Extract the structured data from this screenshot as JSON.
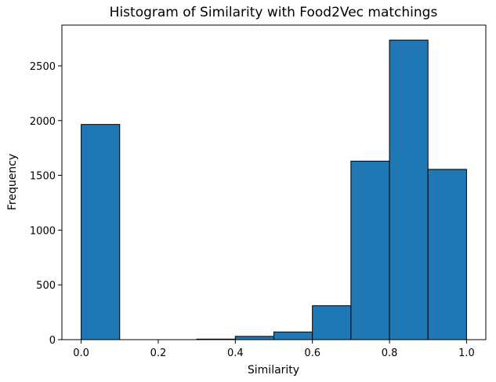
{
  "chart_data": {
    "type": "bar",
    "title": "Histogram of Similarity with Food2Vec matchings",
    "xlabel": "Similarity",
    "ylabel": "Frequency",
    "bins": [
      {
        "x0": 0.0,
        "x1": 0.1,
        "value": 1965
      },
      {
        "x0": 0.1,
        "x1": 0.2,
        "value": 0
      },
      {
        "x0": 0.2,
        "x1": 0.3,
        "value": 0
      },
      {
        "x0": 0.3,
        "x1": 0.4,
        "value": 5
      },
      {
        "x0": 0.4,
        "x1": 0.5,
        "value": 30
      },
      {
        "x0": 0.5,
        "x1": 0.6,
        "value": 70
      },
      {
        "x0": 0.6,
        "x1": 0.7,
        "value": 310
      },
      {
        "x0": 0.7,
        "x1": 0.8,
        "value": 1630
      },
      {
        "x0": 0.8,
        "x1": 0.9,
        "value": 2735
      },
      {
        "x0": 0.9,
        "x1": 1.0,
        "value": 1555
      }
    ],
    "xlim": [
      -0.05,
      1.05
    ],
    "ylim": [
      0,
      2872
    ],
    "xticks": [
      0.0,
      0.2,
      0.4,
      0.6,
      0.8,
      1.0
    ],
    "xtick_labels": [
      "0.0",
      "0.2",
      "0.4",
      "0.6",
      "0.8",
      "1.0"
    ],
    "yticks": [
      0,
      500,
      1000,
      1500,
      2000,
      2500
    ],
    "ytick_labels": [
      "0",
      "500",
      "1000",
      "1500",
      "2000",
      "2500"
    ],
    "bar_color": "#1f77b4",
    "edge_color": "#000000",
    "grid": false,
    "legend": "none"
  }
}
